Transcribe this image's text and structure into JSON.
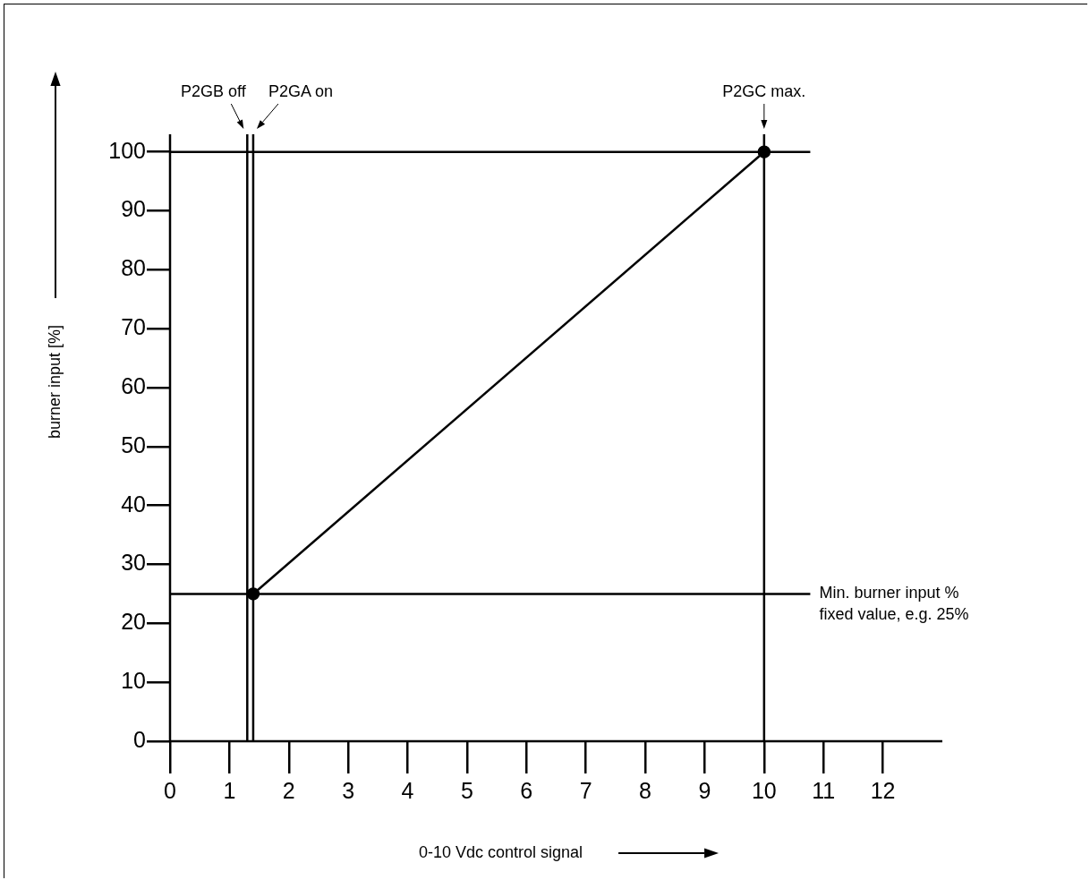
{
  "chart_data": {
    "type": "line",
    "xlabel": "0-10 Vdc control signal",
    "ylabel": "burner input [%]",
    "x": [
      1.4,
      10
    ],
    "series": [
      {
        "color": "#000000",
        "values": [
          25,
          100
        ]
      }
    ],
    "marker": "circle",
    "line_style": "solid",
    "grid": false,
    "legend": false,
    "xlim": [
      0,
      13
    ],
    "xticks": [
      0,
      1,
      2,
      3,
      4,
      5,
      6,
      7,
      8,
      9,
      10,
      11,
      12
    ],
    "ylim": [
      0,
      103
    ],
    "yticks": [
      0,
      10,
      20,
      30,
      40,
      50,
      60,
      70,
      80,
      90,
      100
    ],
    "ref_lines": [
      {
        "axis": "x",
        "value": 1.3,
        "label": "P2GB off"
      },
      {
        "axis": "x",
        "value": 1.4,
        "label": "P2GA on"
      },
      {
        "axis": "x",
        "value": 10,
        "label": "P2GC max."
      },
      {
        "axis": "y",
        "value": 25,
        "label": "Min. burner input %\nfixed value, e.g. 25%"
      },
      {
        "axis": "y",
        "value": 100
      }
    ]
  }
}
